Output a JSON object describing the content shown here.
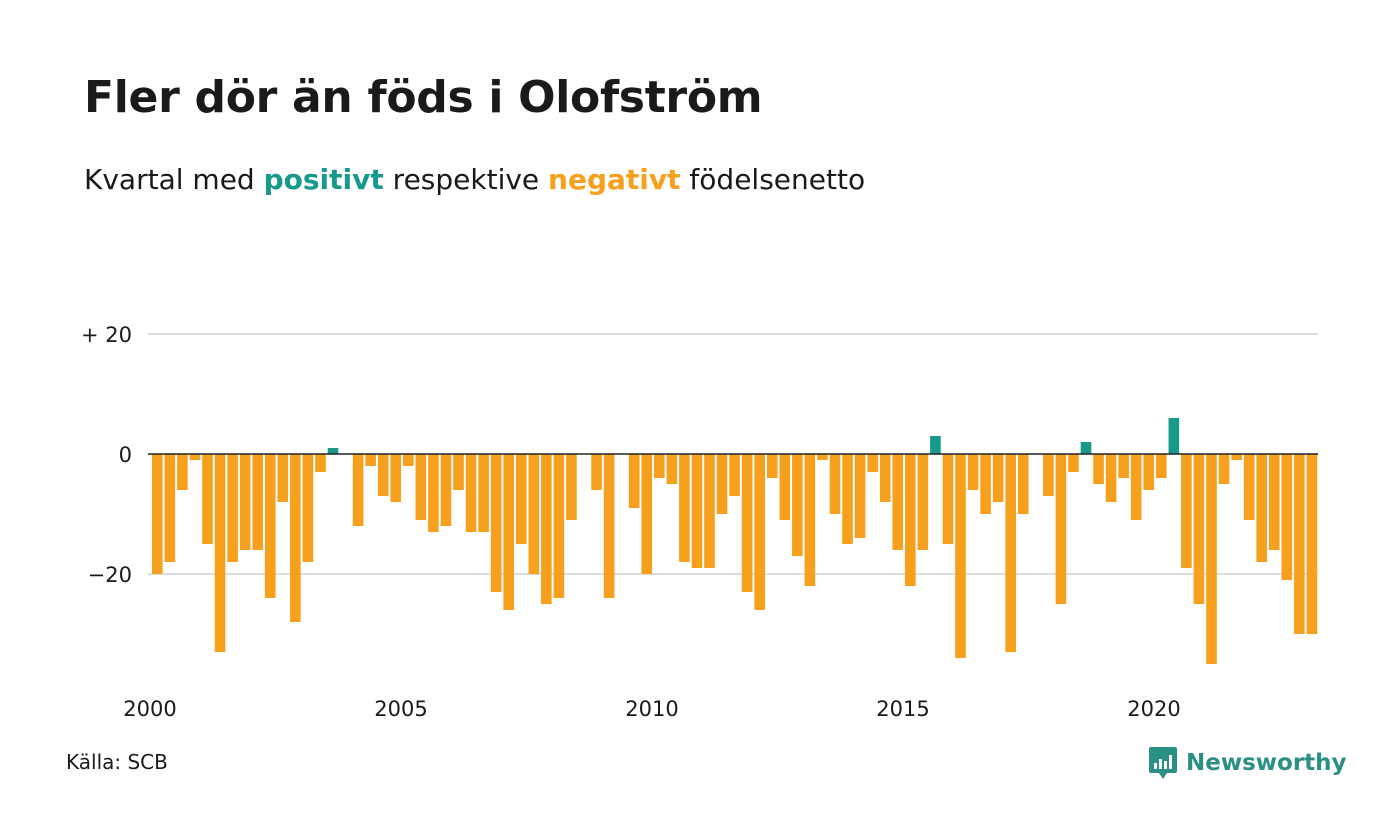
{
  "title": "Fler dör än föds i Olofström",
  "subtitle": {
    "prefix": "Kvartal med ",
    "positive_word": "positivt",
    "middle": " respektive ",
    "negative_word": "negativt",
    "suffix": " födelsenetto"
  },
  "source": "Källa: SCB",
  "logo": {
    "text": "Newsworthy",
    "icon": "newsworthy-logo-icon"
  },
  "colors": {
    "positive": "#179a8b",
    "negative": "#f7a01d",
    "grid": "#dddddd",
    "zero": "#222222"
  },
  "chart_data": {
    "type": "bar",
    "title": "Fler dör än föds i Olofström",
    "ylim": [
      -35,
      20
    ],
    "y_ticks": [
      {
        "value": 20,
        "label": "+ 20"
      },
      {
        "value": 0,
        "label": "0"
      },
      {
        "value": -20,
        "label": "−20"
      }
    ],
    "x_ticks": [
      "2000",
      "2005",
      "2010",
      "2015",
      "2020"
    ],
    "grid": true,
    "start": "2000 Q1",
    "frequency": "quarterly",
    "values": [
      -20,
      -18,
      -6,
      -1,
      -15,
      -33,
      -18,
      -16,
      -16,
      -24,
      -8,
      -28,
      -18,
      -3,
      1,
      0,
      -12,
      -2,
      -7,
      -8,
      -2,
      -11,
      -13,
      -12,
      -6,
      -13,
      -13,
      -23,
      -26,
      -15,
      -20,
      -25,
      -24,
      -11,
      0,
      -6,
      -24,
      0,
      -9,
      -20,
      -4,
      -5,
      -18,
      -19,
      -19,
      -10,
      -7,
      -23,
      -26,
      -4,
      -11,
      -17,
      -22,
      -1,
      -10,
      -15,
      -14,
      -3,
      -8,
      -16,
      -22,
      -16,
      3,
      -15,
      -34,
      -6,
      -10,
      -8,
      -33,
      -10,
      0,
      -7,
      -25,
      -3,
      2,
      -5,
      -8,
      -4,
      -11,
      -6,
      -4,
      6,
      -19,
      -25,
      -35,
      -5,
      -1,
      -11,
      -18,
      -16,
      -21,
      -30,
      -30
    ]
  }
}
